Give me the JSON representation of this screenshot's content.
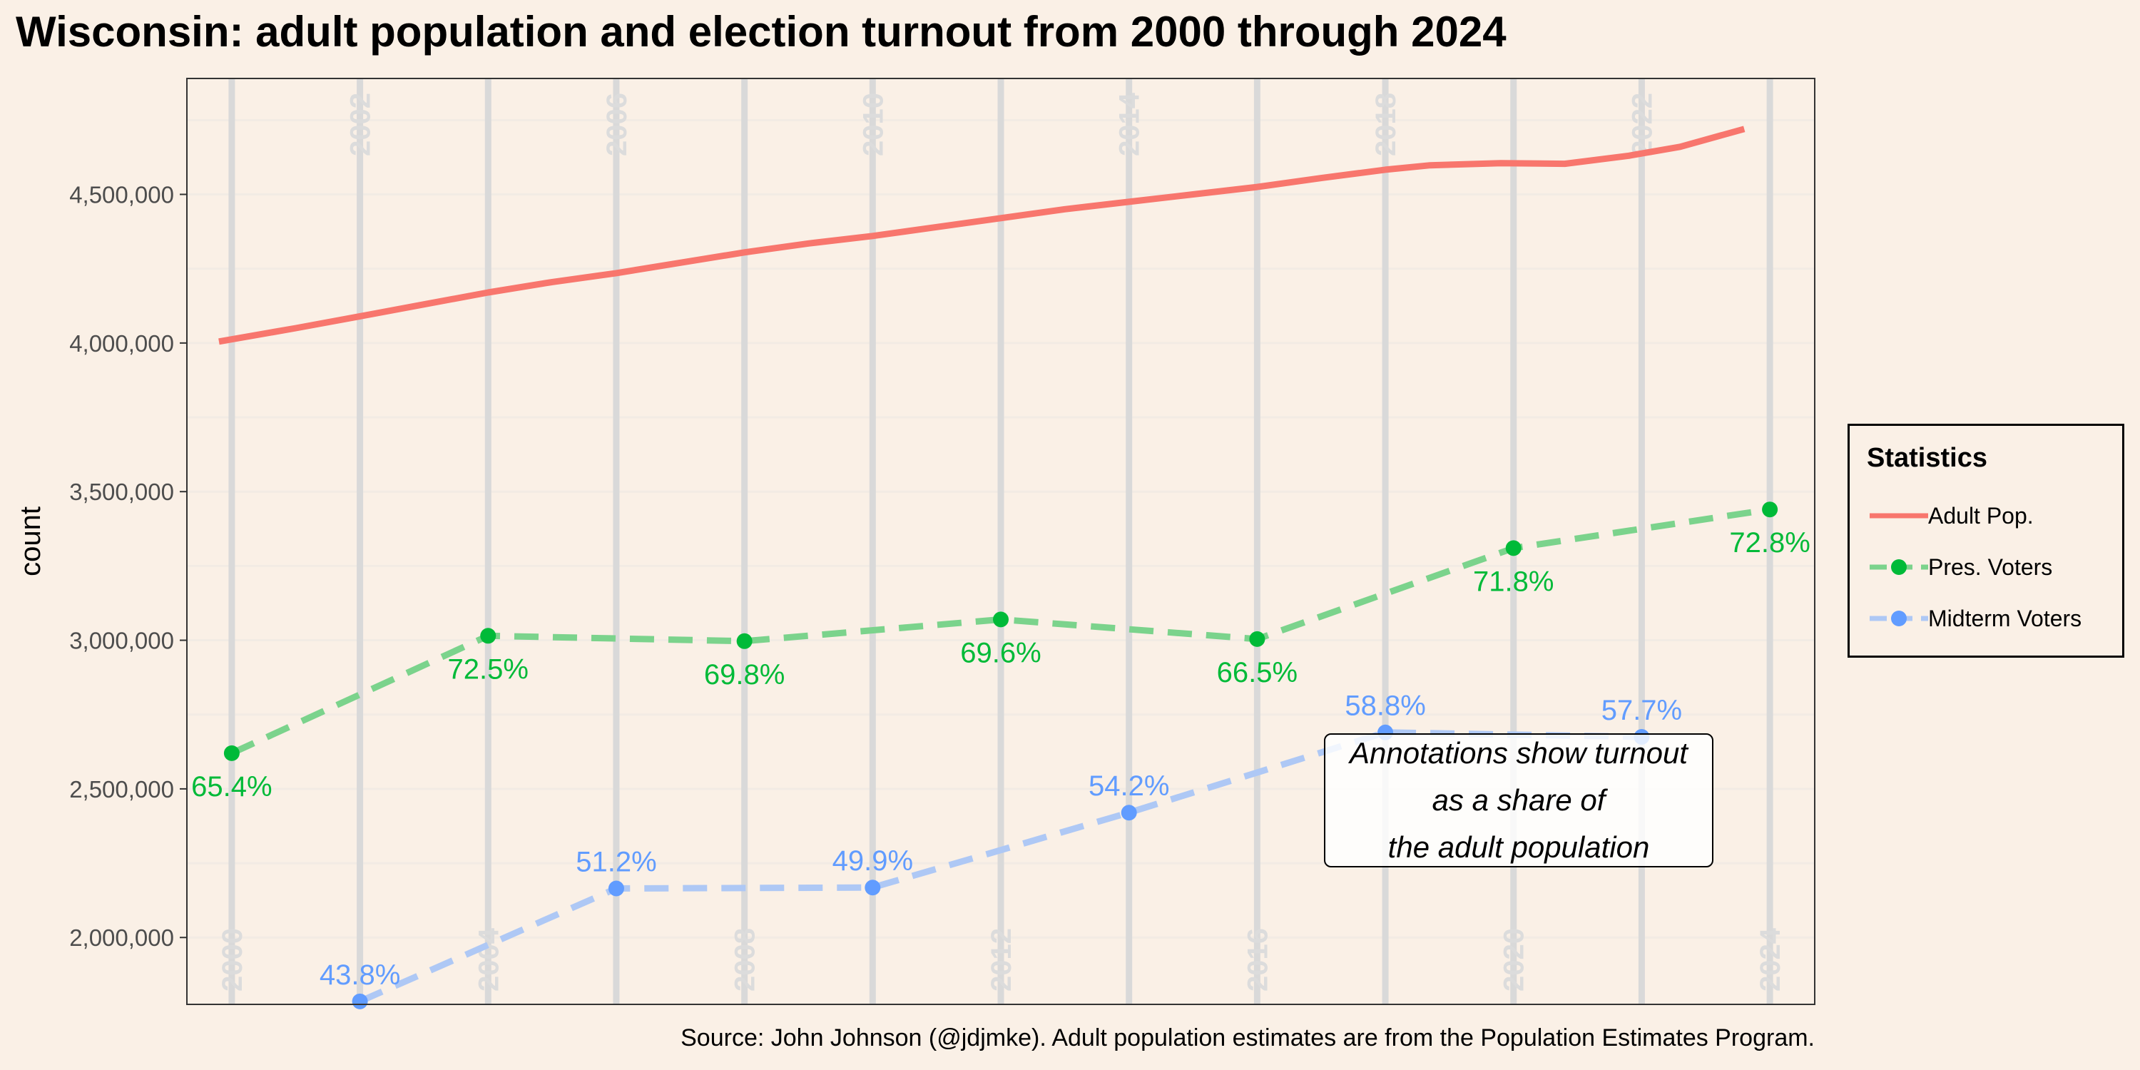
{
  "title": "Wisconsin: adult population and election turnout from 2000 through 2024",
  "source": "Source: John Johnson (@jdjmke). Adult population estimates are from the Population Estimates Program.",
  "annotation": {
    "lines": [
      "Annotations show turnout",
      "as a share of",
      "the adult population"
    ]
  },
  "legend": {
    "title": "Statistics",
    "items": [
      {
        "label": "Adult Pop.",
        "color": "#F8766D",
        "style": "solid-line"
      },
      {
        "label": "Pres. Voters",
        "color": "#00BA38",
        "style": "dashed-line-point"
      },
      {
        "label": "Midterm Voters",
        "color": "#619CFF",
        "style": "dashed-line-point"
      }
    ]
  },
  "colors": {
    "background": "#FAF0E6",
    "adult_pop": "#F8766D",
    "pres_line": "#7BD38C",
    "pres_point": "#00BA38",
    "midterm_line": "#AEC8F5",
    "midterm_point": "#619CFF",
    "year_line": "#D9D9D9",
    "grid": "#F2EBE4"
  },
  "chart_data": {
    "type": "line",
    "title": "Wisconsin: adult population and election turnout from 2000 through 2024",
    "xlabel": "",
    "ylabel": "count",
    "xlim": [
      1999.3,
      2024.7
    ],
    "ylim": [
      1775000,
      4890000
    ],
    "grid": true,
    "legend_position": "right",
    "yticks": [
      2000000,
      2500000,
      3000000,
      3500000,
      4000000,
      4500000
    ],
    "ytick_labels": [
      "2,000,000",
      "2,500,000",
      "3,000,000",
      "3,500,000",
      "4,000,000",
      "4,500,000"
    ],
    "year_labels": [
      {
        "year": 2000,
        "label": "2000",
        "pos": "bottom"
      },
      {
        "year": 2002,
        "label": "2002",
        "pos": "top"
      },
      {
        "year": 2004,
        "label": "2004",
        "pos": "bottom"
      },
      {
        "year": 2006,
        "label": "2006",
        "pos": "top"
      },
      {
        "year": 2008,
        "label": "2008",
        "pos": "bottom"
      },
      {
        "year": 2010,
        "label": "2010",
        "pos": "top"
      },
      {
        "year": 2012,
        "label": "2012",
        "pos": "bottom"
      },
      {
        "year": 2014,
        "label": "2014",
        "pos": "top"
      },
      {
        "year": 2016,
        "label": "2016",
        "pos": "bottom"
      },
      {
        "year": 2018,
        "label": "2018",
        "pos": "top"
      },
      {
        "year": 2020,
        "label": "2020",
        "pos": "bottom"
      },
      {
        "year": 2022,
        "label": "2022",
        "pos": "top"
      },
      {
        "year": 2024,
        "label": "2024",
        "pos": "bottom"
      }
    ],
    "series": [
      {
        "name": "Adult Pop.",
        "style": "solid",
        "points": [
          [
            1999.8,
            4005000
          ],
          [
            2001,
            4050000
          ],
          [
            2002,
            4090000
          ],
          [
            2003,
            4130000
          ],
          [
            2004,
            4170000
          ],
          [
            2005,
            4205000
          ],
          [
            2006,
            4235000
          ],
          [
            2007,
            4270000
          ],
          [
            2008,
            4305000
          ],
          [
            2009,
            4335000
          ],
          [
            2010,
            4360000
          ],
          [
            2011,
            4390000
          ],
          [
            2012,
            4420000
          ],
          [
            2013,
            4450000
          ],
          [
            2014,
            4475000
          ],
          [
            2015,
            4500000
          ],
          [
            2016,
            4525000
          ],
          [
            2017,
            4555000
          ],
          [
            2018,
            4583000
          ],
          [
            2018.7,
            4598000
          ],
          [
            2019.8,
            4605000
          ],
          [
            2020.8,
            4603000
          ],
          [
            2021.8,
            4630000
          ],
          [
            2022.6,
            4660000
          ],
          [
            2023.6,
            4720000
          ]
        ]
      },
      {
        "name": "Pres. Voters",
        "style": "dashed",
        "points": [
          [
            2000,
            2620000
          ],
          [
            2004,
            3015000
          ],
          [
            2008,
            2997000
          ],
          [
            2012,
            3070000
          ],
          [
            2016,
            3004000
          ],
          [
            2020,
            3310000
          ],
          [
            2024,
            3440000
          ]
        ],
        "labels": [
          "65.4%",
          "72.5%",
          "69.8%",
          "69.6%",
          "66.5%",
          "71.8%",
          "72.8%"
        ]
      },
      {
        "name": "Midterm Voters",
        "style": "dashed",
        "points": [
          [
            2002,
            1785000
          ],
          [
            2006,
            2165000
          ],
          [
            2010,
            2168000
          ],
          [
            2014,
            2420000
          ],
          [
            2018,
            2690000
          ],
          [
            2022,
            2675000
          ]
        ],
        "labels": [
          "43.8%",
          "51.2%",
          "49.9%",
          "54.2%",
          "58.8%",
          "57.7%"
        ]
      }
    ]
  }
}
